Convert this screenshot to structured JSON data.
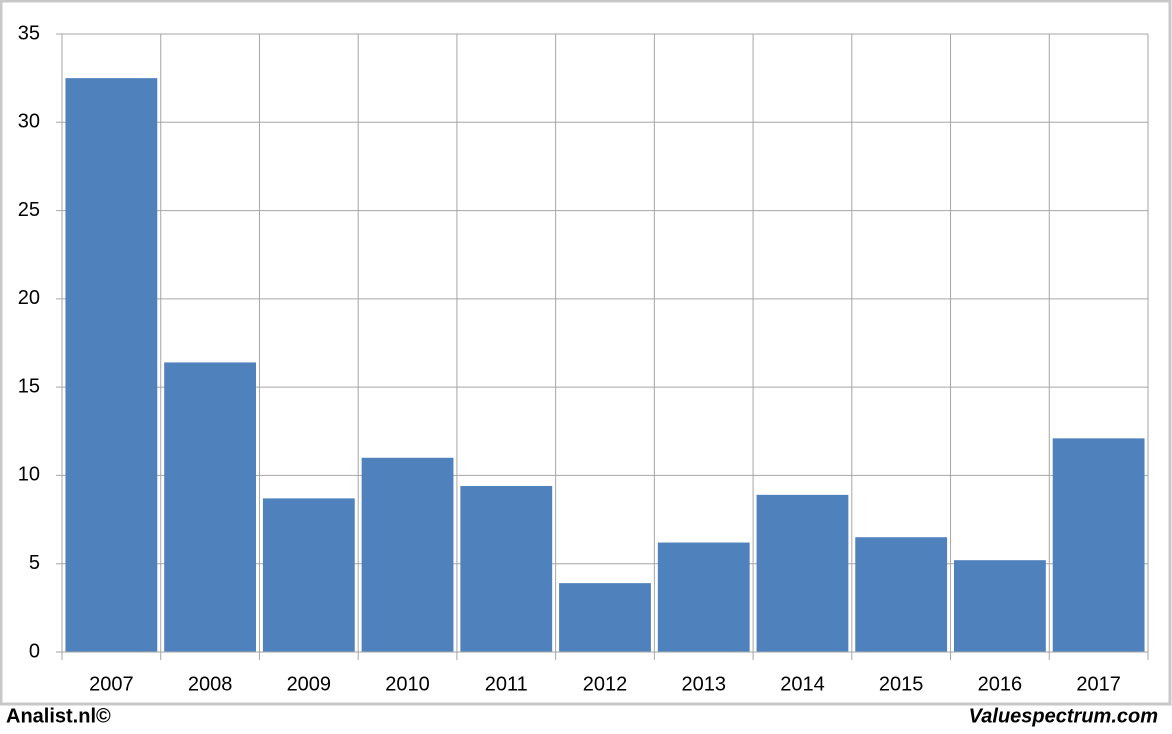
{
  "chart_data": {
    "type": "bar",
    "categories": [
      "2007",
      "2008",
      "2009",
      "2010",
      "2011",
      "2012",
      "2013",
      "2014",
      "2015",
      "2016",
      "2017"
    ],
    "values": [
      32.5,
      16.4,
      8.7,
      11.0,
      9.4,
      3.9,
      6.2,
      8.9,
      6.5,
      5.2,
      12.1
    ],
    "color": "#4f81bd",
    "ylim": [
      0,
      35
    ],
    "yticks": [
      0,
      5,
      10,
      15,
      20,
      25,
      30,
      35
    ],
    "grid": true,
    "annotations": [
      "Analist.nl©",
      "Valuespectrum.com"
    ]
  }
}
